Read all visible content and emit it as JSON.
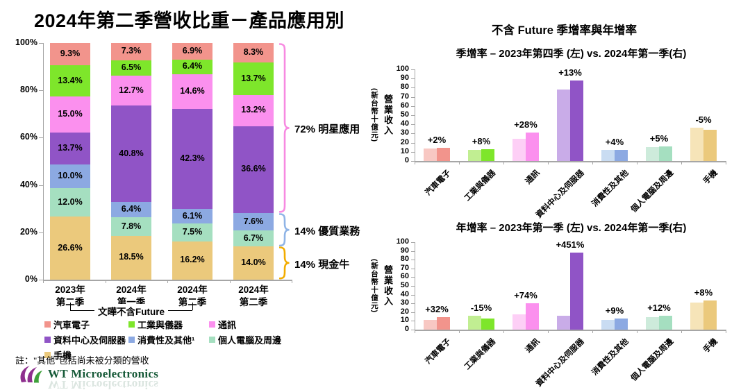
{
  "left_panel": {
    "note": "註：\"其他\"包括尚未被分類的營收",
    "legend_labels": [
      "汽車電子",
      "工業與儀器",
      "通訊",
      "資料中心及伺服器",
      "消費性及其他¹",
      "個人電腦及周邊",
      "手機"
    ],
    "logo_text": "WT Microelectronics"
  },
  "right_panel": {
    "header": "不含 Future 季增率與年增率"
  },
  "series": [
    {
      "name": "汽車電子",
      "color": "#F2948C",
      "light": "#F8C8C3"
    },
    {
      "name": "工業與儀器",
      "color": "#7EE62B",
      "light": "#C1EE92"
    },
    {
      "name": "通訊",
      "color": "#FB90EE",
      "light": "#FDCFF6"
    },
    {
      "name": "資料中心及伺服器",
      "color": "#9054C6",
      "light": "#C9ACE8"
    },
    {
      "name": "消費性及其他",
      "color": "#8CA9E2",
      "light": "#C9DCF2"
    },
    {
      "name": "個人電腦及周邊",
      "color": "#A5DFC0",
      "light": "#CDEBDB"
    },
    {
      "name": "手機",
      "color": "#EBC97C",
      "light": "#F6E4B8"
    }
  ],
  "chart_data": [
    {
      "type": "bar",
      "stacked": true,
      "title": "2024年第二季營收比重－產品應用別",
      "ylabel": "",
      "ylim": [
        0,
        100
      ],
      "yticks": [
        "100%",
        "80%",
        "60%",
        "40%",
        "20%",
        "0%"
      ],
      "categories": [
        [
          "2023年",
          "第二季"
        ],
        [
          "2024年",
          "第一季"
        ],
        [
          "2024年",
          "第二季"
        ],
        [
          "2024年",
          "第二季"
        ]
      ],
      "series_order_top_to_bottom": [
        "汽車電子",
        "工業與儀器",
        "通訊",
        "資料中心及伺服器",
        "消費性及其他",
        "個人電腦及周邊",
        "手機"
      ],
      "values_pct_top_to_bottom": [
        [
          9.3,
          13.4,
          15.0,
          13.7,
          10.0,
          12.0,
          26.6
        ],
        [
          7.3,
          6.5,
          12.7,
          40.8,
          6.4,
          7.8,
          18.5
        ],
        [
          6.9,
          6.4,
          14.6,
          42.3,
          6.1,
          7.5,
          16.2
        ],
        [
          8.3,
          13.7,
          13.2,
          36.6,
          7.6,
          6.7,
          14.0
        ]
      ],
      "category_bracket": {
        "label": "文曄不含Future",
        "covers_categories": [
          0,
          1,
          2
        ]
      },
      "brace_annotations": [
        {
          "label": "72% 明星應用",
          "pct_from": 28.2,
          "pct_to": 100,
          "color": "#F78AE1"
        },
        {
          "label": "14% 優質業務",
          "pct_from": 14.0,
          "pct_to": 28.2,
          "color": "#8FB4E6"
        },
        {
          "label": "14% 現金牛",
          "pct_from": 0,
          "pct_to": 14.0,
          "color": "#F2AC00"
        }
      ]
    },
    {
      "type": "bar",
      "grouped": true,
      "title": "季增率 – 2023年第四季 (左) vs. 2024年第一季(右)",
      "ylabel": "營業收入",
      "ylabel_unit": "(新台幣十億元)",
      "ylim": [
        0,
        100
      ],
      "ytick_step": 10,
      "categories": [
        "汽車電子",
        "工業與儀器",
        "通訊",
        "資料中心及伺服器",
        "消費性及其他",
        "個人電腦及周邊",
        "手機"
      ],
      "series": [
        {
          "name": "2023年第四季",
          "values": [
            14,
            12,
            24,
            78,
            12,
            15,
            36
          ]
        },
        {
          "name": "2024年第一季",
          "values": [
            14.3,
            13,
            31,
            88,
            12.5,
            15.8,
            34
          ]
        }
      ],
      "growth_labels": [
        "+2%",
        "+8%",
        "+28%",
        "+13%",
        "+4%",
        "+5%",
        "-5%"
      ]
    },
    {
      "type": "bar",
      "grouped": true,
      "title": "年增率 – 2023年第一季 (左) vs. 2024年第一季(右)",
      "ylabel": "營業收入",
      "ylabel_unit": "(新台幣十億元)",
      "ylim": [
        0,
        100
      ],
      "ytick_step": 10,
      "categories": [
        "汽車電子",
        "工業與儀器",
        "通訊",
        "資料中心及伺服器",
        "消費性及其他",
        "個人電腦及周邊",
        "手機"
      ],
      "series": [
        {
          "name": "2023年第一季",
          "values": [
            11,
            15.5,
            17.5,
            16,
            11.5,
            14,
            31
          ]
        },
        {
          "name": "2024年第一季",
          "values": [
            14.5,
            13,
            30.5,
            88,
            12.5,
            15.7,
            33.5
          ]
        }
      ],
      "growth_labels": [
        "+32%",
        "-15%",
        "+74%",
        "+451%",
        "+9%",
        "+12%",
        "+8%"
      ]
    }
  ]
}
